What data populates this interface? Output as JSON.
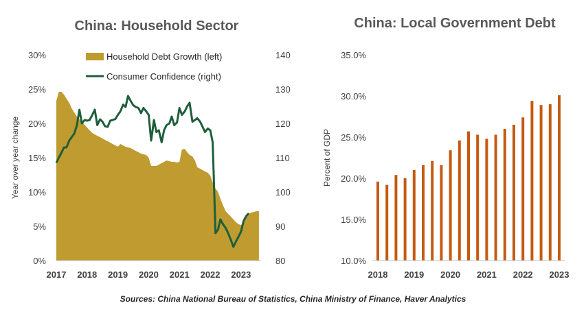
{
  "source": "Sources: China National Bureau of Statistics, China Ministry of Finance, Haver Analytics",
  "chart_data": [
    {
      "type": "area",
      "title": "China: Household Sector",
      "ylabel": "Year over year change",
      "ylim": [
        0,
        30
      ],
      "yticks": [
        "0%",
        "5%",
        "10%",
        "15%",
        "20%",
        "25%",
        "30%"
      ],
      "y2lim": [
        80,
        140
      ],
      "y2ticks": [
        "80",
        "90",
        "100",
        "110",
        "120",
        "130",
        "140"
      ],
      "xlim": [
        2017,
        2023.65
      ],
      "xticks": [
        "2017",
        "2018",
        "2019",
        "2020",
        "2021",
        "2022",
        "2023"
      ],
      "legend_position": "top-center",
      "colors": {
        "area": "#BF9B30",
        "line": "#1E5E3B"
      },
      "series": [
        {
          "name": "Household Debt Growth (left)",
          "axis": "left",
          "kind": "area",
          "x": [
            2017.0,
            2017.08,
            2017.17,
            2017.25,
            2017.33,
            2017.42,
            2017.5,
            2017.58,
            2017.67,
            2017.75,
            2017.83,
            2017.92,
            2018.0,
            2018.08,
            2018.17,
            2018.25,
            2018.33,
            2018.42,
            2018.5,
            2018.58,
            2018.67,
            2018.75,
            2018.83,
            2018.92,
            2019.0,
            2019.08,
            2019.17,
            2019.25,
            2019.33,
            2019.42,
            2019.5,
            2019.58,
            2019.67,
            2019.75,
            2019.83,
            2019.92,
            2020.0,
            2020.08,
            2020.17,
            2020.25,
            2020.33,
            2020.42,
            2020.5,
            2020.58,
            2020.67,
            2020.75,
            2020.83,
            2020.92,
            2021.0,
            2021.08,
            2021.17,
            2021.25,
            2021.33,
            2021.42,
            2021.5,
            2021.58,
            2021.67,
            2021.75,
            2021.83,
            2021.92,
            2022.0,
            2022.08,
            2022.17,
            2022.25,
            2022.33,
            2022.42,
            2022.5,
            2022.58,
            2022.67,
            2022.75,
            2022.83,
            2022.92,
            2023.0,
            2023.08,
            2023.17,
            2023.25,
            2023.33,
            2023.42,
            2023.5,
            2023.58
          ],
          "values": [
            23.3,
            24.6,
            24.6,
            24.2,
            23.6,
            23.0,
            22.2,
            21.6,
            21.0,
            20.6,
            20.2,
            19.8,
            19.4,
            19.0,
            18.6,
            18.4,
            18.2,
            18.0,
            17.8,
            17.6,
            17.4,
            17.2,
            17.0,
            16.8,
            16.6,
            17.0,
            16.8,
            16.6,
            16.5,
            16.4,
            16.2,
            16.0,
            15.8,
            15.6,
            15.5,
            15.4,
            15.0,
            13.8,
            13.8,
            13.8,
            14.0,
            14.2,
            14.4,
            14.6,
            14.5,
            14.4,
            14.4,
            14.3,
            14.4,
            16.2,
            16.3,
            15.8,
            15.4,
            15.2,
            14.6,
            13.6,
            13.4,
            13.2,
            13.0,
            12.8,
            12.4,
            11.4,
            10.5,
            10.0,
            9.0,
            8.0,
            7.2,
            6.8,
            6.4,
            6.0,
            5.6,
            5.3,
            5.2,
            5.4,
            6.2,
            6.8,
            7.0,
            7.1,
            7.2,
            7.2
          ]
        },
        {
          "name": "Consumer Confidence (right)",
          "axis": "right",
          "kind": "line",
          "x": [
            2017.0,
            2017.08,
            2017.17,
            2017.25,
            2017.33,
            2017.42,
            2017.5,
            2017.58,
            2017.67,
            2017.75,
            2017.83,
            2017.92,
            2018.0,
            2018.08,
            2018.17,
            2018.25,
            2018.33,
            2018.42,
            2018.5,
            2018.58,
            2018.67,
            2018.75,
            2018.83,
            2018.92,
            2019.0,
            2019.08,
            2019.17,
            2019.25,
            2019.33,
            2019.42,
            2019.5,
            2019.58,
            2019.67,
            2019.75,
            2019.83,
            2019.92,
            2020.0,
            2020.08,
            2020.17,
            2020.25,
            2020.33,
            2020.42,
            2020.5,
            2020.58,
            2020.67,
            2020.75,
            2020.83,
            2020.92,
            2021.0,
            2021.08,
            2021.17,
            2021.25,
            2021.33,
            2021.42,
            2021.5,
            2021.58,
            2021.67,
            2021.75,
            2021.83,
            2021.92,
            2022.0,
            2022.08,
            2022.17,
            2022.25,
            2022.33,
            2022.42,
            2022.5,
            2022.58,
            2022.67,
            2022.75,
            2022.83,
            2022.92,
            2023.0,
            2023.08,
            2023.17,
            2023.25
          ],
          "values": [
            108.5,
            110.0,
            111.5,
            113.0,
            113.0,
            115.0,
            116.0,
            117.0,
            119.5,
            124.0,
            120.0,
            121.0,
            120.8,
            121.0,
            122.5,
            124.0,
            119.5,
            121.2,
            120.5,
            119.2,
            119.0,
            120.8,
            121.0,
            121.3,
            122.5,
            123.5,
            125.5,
            124.8,
            128.0,
            126.5,
            125.3,
            124.8,
            124.5,
            123.0,
            124.5,
            123.5,
            122.5,
            115.0,
            121.0,
            117.5,
            118.0,
            114.5,
            118.0,
            119.5,
            120.0,
            122.0,
            119.5,
            120.3,
            124.5,
            122.5,
            123.5,
            125.0,
            126.0,
            120.5,
            121.0,
            121.5,
            120.5,
            119.0,
            117.5,
            118.5,
            118.0,
            114.5,
            88.0,
            89.0,
            92.0,
            90.5,
            89.5,
            88.0,
            86.0,
            84.0,
            85.5,
            87.0,
            88.5,
            91.5,
            93.0,
            93.8
          ]
        }
      ]
    },
    {
      "type": "bar",
      "title": "China: Local Government Debt",
      "ylabel": "Percent of GDP",
      "ylim": [
        10,
        35
      ],
      "yticks": [
        "10.0%",
        "15.0%",
        "20.0%",
        "25.0%",
        "30.0%",
        "35.0%"
      ],
      "xlim": [
        2018,
        2023
      ],
      "xticks": [
        "2018",
        "2019",
        "2020",
        "2021",
        "2022",
        "2023"
      ],
      "grid": false,
      "colors": {
        "bar": "#C55A11"
      },
      "series": [
        {
          "x": [
            2018.0,
            2018.25,
            2018.5,
            2018.75,
            2019.0,
            2019.25,
            2019.5,
            2019.75,
            2020.0,
            2020.25,
            2020.5,
            2020.75,
            2021.0,
            2021.25,
            2021.5,
            2021.75,
            2022.0,
            2022.25,
            2022.5,
            2022.75,
            2023.0
          ],
          "values": [
            19.6,
            19.2,
            20.4,
            20.0,
            21.0,
            21.6,
            22.1,
            21.6,
            23.4,
            24.6,
            25.7,
            25.3,
            24.8,
            25.3,
            26.0,
            26.5,
            27.4,
            29.4,
            28.9,
            29.0,
            30.1
          ]
        }
      ]
    }
  ]
}
